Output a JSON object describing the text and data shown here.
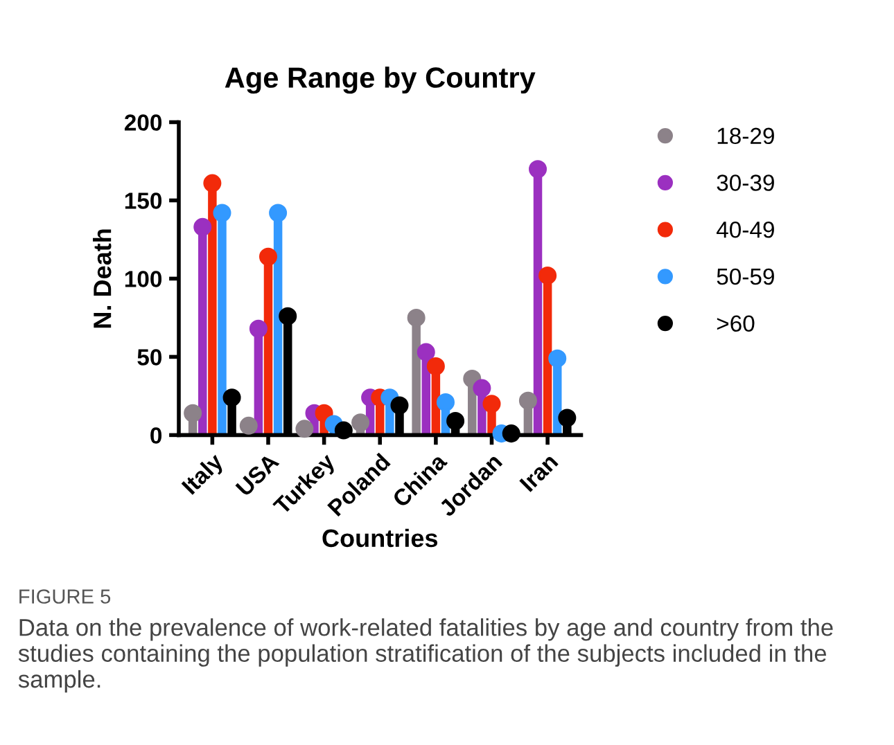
{
  "chart_data": {
    "type": "lollipop",
    "title": "Age Range by Country",
    "xlabel": "Countries",
    "ylabel": "N. Death",
    "categories": [
      "Italy",
      "USA",
      "Turkey",
      "Poland",
      "China",
      "Jordan",
      "Iran"
    ],
    "series": [
      {
        "name": "18-29",
        "color": "#8c8289",
        "values": [
          14,
          6,
          4,
          8,
          75,
          36,
          22
        ]
      },
      {
        "name": "30-39",
        "color": "#9b30c0",
        "values": [
          133,
          68,
          14,
          24,
          53,
          30,
          170
        ]
      },
      {
        "name": "40-49",
        "color": "#f22a0a",
        "values": [
          161,
          114,
          14,
          24,
          44,
          20,
          102
        ]
      },
      {
        "name": "50-59",
        "color": "#3399ff",
        "values": [
          142,
          142,
          7,
          24,
          21,
          1,
          49
        ]
      },
      {
        "name": ">60",
        "color": "#000000",
        "values": [
          24,
          76,
          3,
          19,
          9,
          1,
          11
        ]
      }
    ],
    "ylim": [
      0,
      200
    ],
    "yticks": [
      0,
      50,
      100,
      150,
      200
    ],
    "grid": false,
    "legend": "right",
    "marker": "circle",
    "annotations": [
      "FIGURE 5",
      "Data on the prevalence of work-related fatalities by age and country from the studies containing the population stratification of the subjects included in the sample."
    ]
  }
}
